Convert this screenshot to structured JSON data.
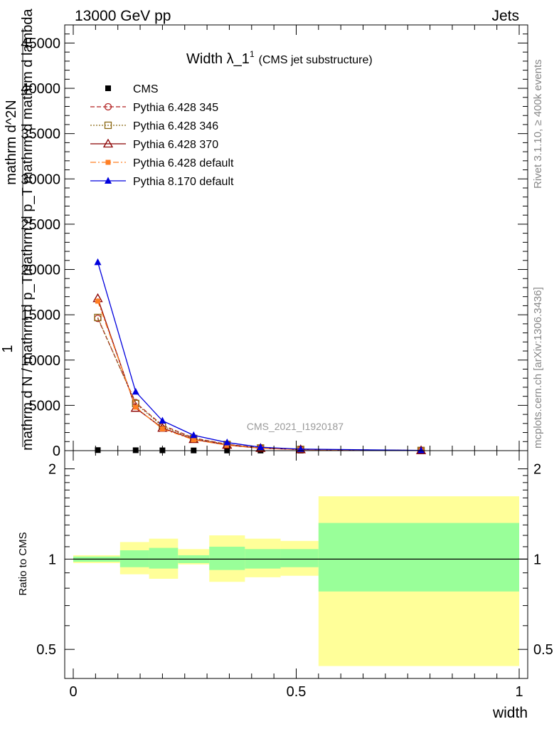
{
  "header": {
    "left": "13000 GeV pp",
    "right": "Jets",
    "right_side_1": "Rivet 3.1.10, ≥ 400k events",
    "right_side_2": "mcplots.cern.ch [arXiv:1306.3436]",
    "watermark": "CMS_2021_I1920187"
  },
  "colors": {
    "cms": "#000000",
    "p345": "#b22222",
    "p346": "#8b6914",
    "p370": "#8b0000",
    "pdefault": "#ff7f24",
    "p8": "#0000dd",
    "band_inner": "#99ff99",
    "band_outer": "#ffff99"
  },
  "chart_data": [
    {
      "type": "line",
      "title": "Width λ_1",
      "title_sup": "1",
      "title_suffix": "(CMS jet substructure)",
      "ylabel_parts": [
        "1",
        "mathrm d N / mathrm d p_T",
        "mathrm d^2N",
        "mathrm d p_T mathrm d mathrm d lambda"
      ],
      "ylim": [
        0,
        47000
      ],
      "xlim": [
        0,
        1
      ],
      "yticks": [
        0,
        5000,
        10000,
        15000,
        20000,
        25000,
        30000,
        35000,
        40000,
        45000
      ],
      "ytick_labels": [
        "0",
        "5000",
        "10000",
        "15000",
        "20000",
        "25000",
        "30000",
        "35000",
        "40000",
        "45000"
      ],
      "legend_position": "top-left",
      "series": [
        {
          "name": "CMS",
          "key": "cms",
          "marker": "square-filled",
          "style": "none",
          "x": [
            0.055,
            0.14,
            0.2,
            0.27,
            0.345,
            0.42,
            0.51,
            0.78
          ],
          "y": [
            60,
            45,
            35,
            25,
            20,
            15,
            10,
            2
          ]
        },
        {
          "name": "Pythia 6.428 345",
          "key": "p345",
          "marker": "circle-open",
          "style": "dashed",
          "x": [
            0.055,
            0.14,
            0.2,
            0.27,
            0.345,
            0.42,
            0.51,
            0.78
          ],
          "y": [
            14600,
            5300,
            2800,
            1400,
            700,
            300,
            140,
            20
          ]
        },
        {
          "name": "Pythia 6.428 346",
          "key": "p346",
          "marker": "square-open",
          "style": "dotted",
          "x": [
            0.055,
            0.14,
            0.2,
            0.27,
            0.345,
            0.42,
            0.51,
            0.78
          ],
          "y": [
            14700,
            5200,
            2700,
            1350,
            680,
            290,
            135,
            20
          ]
        },
        {
          "name": "Pythia 6.428 370",
          "key": "p370",
          "marker": "triangle-open",
          "style": "solid",
          "x": [
            0.055,
            0.14,
            0.2,
            0.27,
            0.345,
            0.42,
            0.51,
            0.78
          ],
          "y": [
            16800,
            4700,
            2500,
            1250,
            620,
            270,
            120,
            18
          ]
        },
        {
          "name": "Pythia 6.428 default",
          "key": "pdefault",
          "marker": "square-filled-small",
          "style": "dashdot",
          "x": [
            0.055,
            0.14,
            0.2,
            0.27,
            0.345,
            0.42,
            0.51,
            0.78
          ],
          "y": [
            16500,
            4800,
            2400,
            1200,
            600,
            260,
            115,
            18
          ]
        },
        {
          "name": "Pythia 8.170 default",
          "key": "p8",
          "marker": "triangle-filled",
          "style": "solid",
          "x": [
            0.055,
            0.14,
            0.2,
            0.27,
            0.345,
            0.42,
            0.51,
            0.78
          ],
          "y": [
            20800,
            6500,
            3300,
            1700,
            900,
            380,
            170,
            25
          ]
        }
      ]
    },
    {
      "type": "area",
      "ylabel": "Ratio to CMS",
      "xlabel": "width",
      "xlim": [
        0,
        1
      ],
      "ylim": [
        0.4,
        2.3
      ],
      "yscale": "log",
      "yticks": [
        0.5,
        1,
        2
      ],
      "ytick_labels": [
        "0.5",
        "1",
        "2"
      ],
      "xticks": [
        0,
        0.5,
        1
      ],
      "xtick_labels": [
        "0",
        "0.5",
        "1"
      ],
      "reference_line": 1,
      "bands": [
        {
          "x0": 0.0,
          "x1": 0.105,
          "inner": [
            0.98,
            1.02
          ],
          "outer": [
            0.97,
            1.03
          ]
        },
        {
          "x0": 0.105,
          "x1": 0.17,
          "inner": [
            0.94,
            1.07
          ],
          "outer": [
            0.89,
            1.14
          ]
        },
        {
          "x0": 0.17,
          "x1": 0.235,
          "inner": [
            0.93,
            1.09
          ],
          "outer": [
            0.86,
            1.17
          ]
        },
        {
          "x0": 0.235,
          "x1": 0.305,
          "inner": [
            0.97,
            1.03
          ],
          "outer": [
            0.96,
            1.08
          ]
        },
        {
          "x0": 0.305,
          "x1": 0.385,
          "inner": [
            0.92,
            1.1
          ],
          "outer": [
            0.84,
            1.2
          ]
        },
        {
          "x0": 0.385,
          "x1": 0.465,
          "inner": [
            0.93,
            1.08
          ],
          "outer": [
            0.87,
            1.17
          ]
        },
        {
          "x0": 0.465,
          "x1": 0.55,
          "inner": [
            0.94,
            1.08
          ],
          "outer": [
            0.88,
            1.15
          ]
        },
        {
          "x0": 0.55,
          "x1": 1.0,
          "inner": [
            0.78,
            1.32
          ],
          "outer": [
            0.44,
            1.62
          ]
        }
      ]
    }
  ]
}
